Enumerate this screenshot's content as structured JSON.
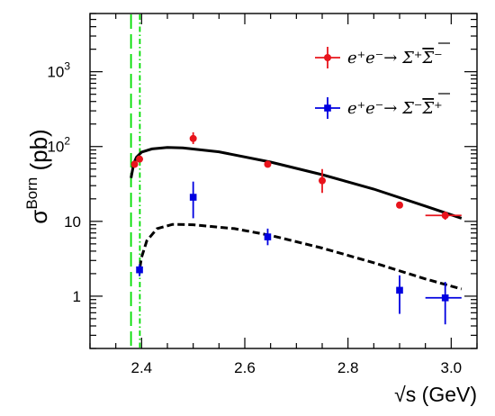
{
  "chart_data": {
    "type": "scatter",
    "xlabel_prefix": "√s",
    "xlabel_unit": "(GeV)",
    "ylabel_main": "σ",
    "ylabel_sup": "Born",
    "ylabel_unit": "(pb)",
    "xlim": [
      2.3,
      3.05
    ],
    "ylim": [
      0.2,
      6000
    ],
    "yscale": "log",
    "grid": false,
    "legend_position": "top-right",
    "x_ticks": [
      {
        "value": 2.4,
        "label": "2.4"
      },
      {
        "value": 2.6,
        "label": "2.6"
      },
      {
        "value": 2.8,
        "label": "2.8"
      },
      {
        "value": 3.0,
        "label": "3.0"
      }
    ],
    "y_ticks": [
      {
        "value": 1,
        "label": "1"
      },
      {
        "value": 10,
        "label": "10"
      },
      {
        "value": 100,
        "base": "10",
        "exp": "2"
      },
      {
        "value": 1000,
        "base": "10",
        "exp": "3"
      }
    ],
    "reference_lines": [
      {
        "x": 2.3795,
        "color": "#00dd00",
        "style": "long-dash"
      },
      {
        "x": 2.3966,
        "color": "#00dd00",
        "style": "dash-dot"
      }
    ],
    "series": [
      {
        "legend_prefix": "e⁺e⁻→ Σ⁺",
        "legend_bar": "Σ",
        "legend_bar_charge": "⁻",
        "color": "#e8141c",
        "marker": "circle",
        "points": [
          {
            "x": 2.3864,
            "y": 58,
            "ylo": 52,
            "yhi": 64
          },
          {
            "x": 2.396,
            "y": 68,
            "ylo": 62,
            "yhi": 74
          },
          {
            "x": 2.5,
            "y": 128,
            "ylo": 108,
            "yhi": 155
          },
          {
            "x": 2.6444,
            "y": 58,
            "ylo": 54,
            "yhi": 62
          },
          {
            "x": 2.75,
            "y": 35,
            "ylo": 24,
            "yhi": 50
          },
          {
            "x": 2.9,
            "y": 16.5,
            "ylo": 15.5,
            "yhi": 17.5
          },
          {
            "x": 2.9884,
            "y": 12,
            "ylo": 10.5,
            "yhi": 13.5,
            "xlo": 2.95,
            "xhi": 3.02
          }
        ],
        "fit": {
          "style": "solid",
          "points": [
            [
              2.3795,
              38
            ],
            [
              2.385,
              60
            ],
            [
              2.39,
              72
            ],
            [
              2.4,
              84
            ],
            [
              2.42,
              93
            ],
            [
              2.45,
              97
            ],
            [
              2.48,
              96
            ],
            [
              2.55,
              85
            ],
            [
              2.65,
              62
            ],
            [
              2.75,
              42
            ],
            [
              2.85,
              27
            ],
            [
              2.95,
              16
            ],
            [
              3.02,
              11
            ]
          ]
        }
      },
      {
        "legend_prefix": "e⁺e⁻→ Σ⁻",
        "legend_bar": "Σ",
        "legend_bar_charge": "⁺",
        "color": "#0000e0",
        "marker": "square",
        "points": [
          {
            "x": 2.396,
            "y": 2.25,
            "ylo": 1.85,
            "yhi": 2.65
          },
          {
            "x": 2.5,
            "y": 21,
            "ylo": 11,
            "yhi": 34
          },
          {
            "x": 2.6444,
            "y": 6.2,
            "ylo": 4.8,
            "yhi": 8
          },
          {
            "x": 2.9,
            "y": 1.2,
            "ylo": 0.58,
            "yhi": 1.9
          },
          {
            "x": 2.9884,
            "y": 0.95,
            "ylo": 0.42,
            "yhi": 1.55,
            "xlo": 2.95,
            "xhi": 3.02
          }
        ],
        "fit": {
          "style": "dashed",
          "points": [
            [
              2.3966,
              2.4
            ],
            [
              2.4,
              3.3
            ],
            [
              2.41,
              5.5
            ],
            [
              2.43,
              8
            ],
            [
              2.46,
              9.1
            ],
            [
              2.5,
              9.0
            ],
            [
              2.58,
              8.0
            ],
            [
              2.65,
              6.5
            ],
            [
              2.75,
              4.4
            ],
            [
              2.85,
              2.8
            ],
            [
              2.95,
              1.7
            ],
            [
              3.02,
              1.25
            ]
          ]
        }
      }
    ]
  }
}
